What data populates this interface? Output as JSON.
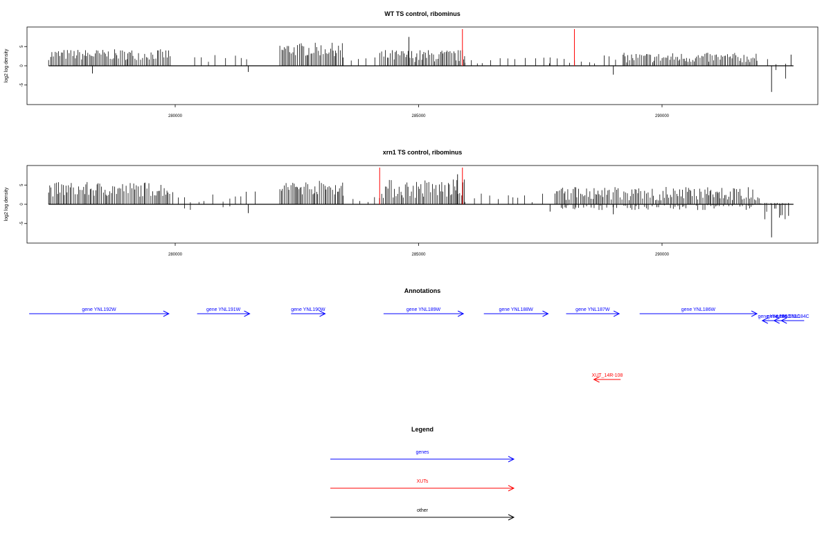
{
  "colors": {
    "gene": "#0000ff",
    "xut": "#ff0000",
    "other": "#000000",
    "marker": "#ff0000",
    "signal": "#000000"
  },
  "chart_data": [
    {
      "type": "bar",
      "title": "WT TS control, ribominus",
      "ylabel": "log2 log density",
      "xlim": [
        277000,
        293200
      ],
      "ylim": [
        -9,
        9
      ],
      "xticks": [
        280000,
        285000,
        290000
      ],
      "yticks": [
        5,
        0,
        -5
      ],
      "markers": [
        288200,
        285900
      ],
      "segments": [
        {
          "from": 277400,
          "to": 279900,
          "mode": "dense",
          "pos": [
            1.5,
            4.3
          ]
        },
        {
          "from": 280400,
          "to": 281600,
          "mode": "sparse",
          "pos": [
            0.6,
            2.8
          ]
        },
        {
          "from": 282150,
          "to": 283450,
          "mode": "dense",
          "pos": [
            2.5,
            6.0
          ]
        },
        {
          "from": 283450,
          "to": 284200,
          "mode": "sparse",
          "pos": [
            0.5,
            3.0
          ]
        },
        {
          "from": 284200,
          "to": 285950,
          "mode": "dense",
          "pos": [
            1.0,
            4.2
          ]
        },
        {
          "from": 285950,
          "to": 287700,
          "mode": "sparse",
          "pos": [
            0.5,
            2.5
          ]
        },
        {
          "from": 287700,
          "to": 289200,
          "mode": "sparse",
          "pos": [
            0.6,
            3.0
          ]
        },
        {
          "from": 289200,
          "to": 291950,
          "mode": "dense",
          "pos": [
            0.8,
            3.4
          ]
        },
        {
          "from": 291950,
          "to": 292600,
          "mode": "sparse",
          "pos": [
            0.3,
            2.5
          ],
          "neg": [
            1.0,
            4.5
          ]
        }
      ],
      "spikes": [
        {
          "x": 284800,
          "y": 7.5
        },
        {
          "x": 278300,
          "y": -2.0
        },
        {
          "x": 281500,
          "y": -1.6
        },
        {
          "x": 289000,
          "y": -2.3
        },
        {
          "x": 292250,
          "y": -6.8
        },
        {
          "x": 292650,
          "y": 2.9
        }
      ]
    },
    {
      "type": "bar",
      "title": "xrn1 TS control, ribominus",
      "ylabel": "log2 log density",
      "xlim": [
        277000,
        293200
      ],
      "ylim": [
        -9,
        9
      ],
      "xticks": [
        280000,
        285000,
        290000
      ],
      "yticks": [
        5,
        0,
        -5
      ],
      "markers": [
        284200,
        285900
      ],
      "segments": [
        {
          "from": 277400,
          "to": 279900,
          "mode": "dense",
          "pos": [
            2.0,
            5.8
          ]
        },
        {
          "from": 279950,
          "to": 281700,
          "mode": "sparse",
          "pos": [
            0.5,
            3.5
          ],
          "neg": [
            0.5,
            2.0
          ]
        },
        {
          "from": 282150,
          "to": 283450,
          "mode": "dense",
          "pos": [
            2.5,
            6.2
          ]
        },
        {
          "from": 283450,
          "to": 284200,
          "mode": "sparse",
          "pos": [
            0.4,
            2.6
          ]
        },
        {
          "from": 284200,
          "to": 285950,
          "mode": "dense",
          "pos": [
            1.5,
            6.5
          ]
        },
        {
          "from": 285950,
          "to": 287700,
          "mode": "sparse",
          "pos": [
            0.5,
            3.0
          ]
        },
        {
          "from": 287800,
          "to": 292000,
          "mode": "dense",
          "pos": [
            1.0,
            4.5
          ],
          "neg": [
            0.2,
            1.5
          ]
        },
        {
          "from": 292000,
          "to": 292600,
          "mode": "dense",
          "pos": [
            0.1,
            0.4
          ],
          "neg": [
            1.0,
            4.0
          ]
        }
      ],
      "spikes": [
        {
          "x": 285800,
          "y": 7.8
        },
        {
          "x": 281500,
          "y": -2.3
        },
        {
          "x": 287700,
          "y": -1.9
        },
        {
          "x": 289000,
          "y": -2.6
        },
        {
          "x": 292250,
          "y": -8.6
        },
        {
          "x": 292600,
          "y": -3.0
        }
      ]
    }
  ],
  "annotations": {
    "title": "Annotations",
    "genes": [
      {
        "label": "gene YNL192W",
        "x1": 277000,
        "x2": 279870,
        "dir": "right"
      },
      {
        "label": "gene YNL191W",
        "x1": 280450,
        "x2": 281530,
        "dir": "right"
      },
      {
        "label": "gene YNL190W",
        "x1": 282380,
        "x2": 283080,
        "dir": "right"
      },
      {
        "label": "gene YNL189W",
        "x1": 284280,
        "x2": 285920,
        "dir": "right"
      },
      {
        "label": "gene YNL188W",
        "x1": 286340,
        "x2": 287660,
        "dir": "right"
      },
      {
        "label": "gene YNL187W",
        "x1": 288030,
        "x2": 289120,
        "dir": "right"
      },
      {
        "label": "gene YNL186W",
        "x1": 289540,
        "x2": 291950,
        "dir": "right"
      },
      {
        "label": "gene YNL185C",
        "x1": 292060,
        "x2": 292560,
        "dir": "left"
      },
      {
        "label": "gene YNL184C",
        "x1": 292450,
        "x2": 292920,
        "dir": "left"
      },
      {
        "label": "gene YNL183C",
        "x1": 292300,
        "x2": 292700,
        "dir": "left"
      }
    ],
    "xuts": [
      {
        "label": "XUT_14R-108",
        "x1": 288600,
        "x2": 289150,
        "dir": "left"
      }
    ]
  },
  "legend": {
    "title": "Legend",
    "items": [
      {
        "label": "genes",
        "kind": "gene"
      },
      {
        "label": "XUTs",
        "kind": "xut"
      },
      {
        "label": "other",
        "kind": "other"
      }
    ]
  }
}
